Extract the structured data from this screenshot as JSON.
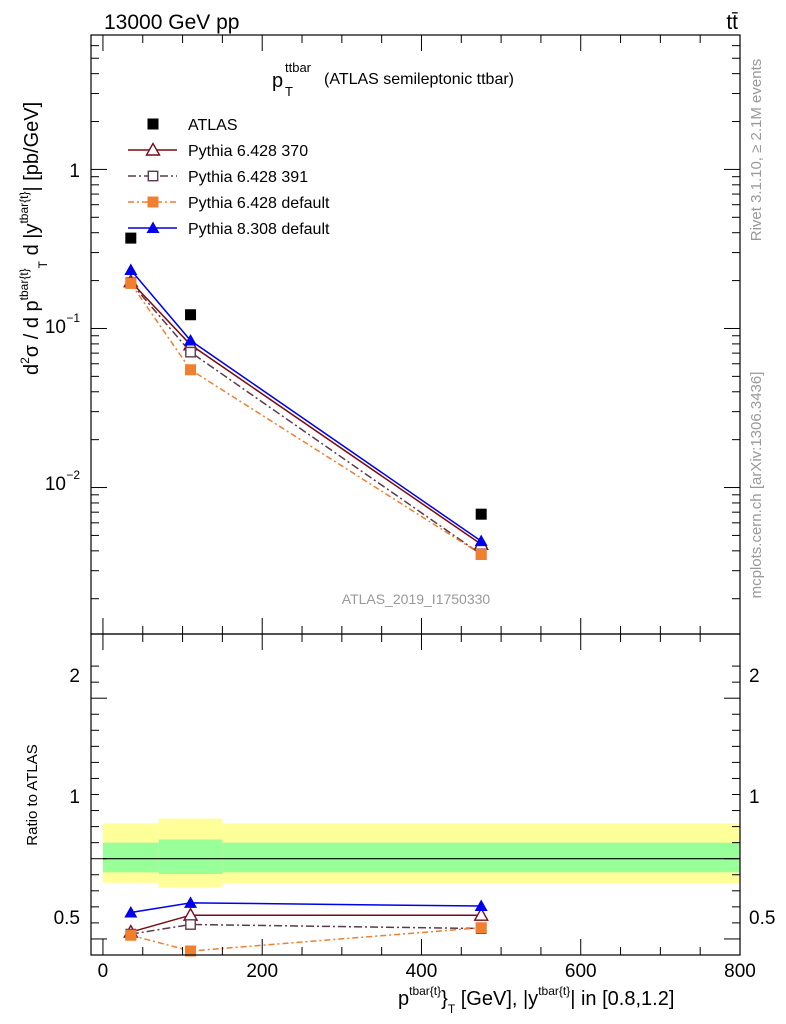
{
  "header": {
    "left": "13000 GeV pp",
    "right": "tt̄"
  },
  "side": {
    "rivet": "Rivet 3.1.10, ≥ 2.1M events",
    "mcplots": "mcplots.cern.ch [arXiv:1306.3436]"
  },
  "top_title": {
    "main": "p",
    "sup": "ttbar",
    "sub": "T",
    "rest": "(ATLAS semileptonic ttbar)"
  },
  "watermark": "ATLAS_2019_I1750330",
  "y_axis_top": "d²σ / d p^tbar{t}_T d |y^tbar{t}| [pb/GeV]",
  "y_axis_bottom": "Ratio to ATLAS",
  "x_axis": "p^tbar{t}_T [GeV], |y^tbar{t}| in [0.8,1.2]",
  "colors": {
    "atlas": "#000000",
    "p6_370": "#7a0a14",
    "p6_391": "#5b3a4a",
    "p6_def": "#f07f30",
    "p8_def": "#0000ee",
    "band_outer": "#ffff99",
    "band_inner": "#99ff99"
  },
  "chart_data": [
    {
      "type": "line",
      "panel": "main",
      "xlim": [
        -15,
        800
      ],
      "ylim": [
        0.0012,
        7
      ],
      "yscale": "log",
      "legend_placement": "top-left",
      "y_tick_labels": [
        "1",
        "10^{-1}",
        "10^{-2}"
      ],
      "series": [
        {
          "name": "ATLAS",
          "marker": "square-filled",
          "x": [
            35,
            110,
            475
          ],
          "y": [
            0.37,
            0.122,
            0.0068
          ]
        },
        {
          "name": "Pythia 6.428 370",
          "marker": "triangle-open",
          "x": [
            35,
            110,
            475
          ],
          "y": [
            0.197,
            0.079,
            0.0044
          ]
        },
        {
          "name": "Pythia 6.428 391",
          "marker": "square-open",
          "x": [
            35,
            110,
            475
          ],
          "y": [
            0.194,
            0.071,
            0.0038
          ]
        },
        {
          "name": "Pythia 6.428 default",
          "marker": "square-filled",
          "x": [
            35,
            110,
            475
          ],
          "y": [
            0.192,
            0.055,
            0.0038
          ]
        },
        {
          "name": "Pythia 8.308 default",
          "marker": "triangle-filled",
          "x": [
            35,
            110,
            475
          ],
          "y": [
            0.233,
            0.084,
            0.0046
          ]
        }
      ]
    },
    {
      "type": "line",
      "panel": "ratio",
      "xlim": [
        -15,
        800
      ],
      "ylim": [
        0.4,
        2.4
      ],
      "x_tick_labels": [
        "0",
        "200",
        "400",
        "600",
        "800"
      ],
      "y_tick_labels": [
        "0.5",
        "1",
        "2"
      ],
      "band": {
        "x_edges": [
          0,
          70,
          150,
          800
        ],
        "outer_lo": [
          0.85,
          0.82,
          0.845
        ],
        "outer_hi": [
          1.22,
          1.25,
          1.22
        ],
        "inner_lo": [
          0.915,
          0.905,
          0.915
        ],
        "inner_hi": [
          1.1,
          1.12,
          1.1
        ]
      },
      "series": [
        {
          "name": "Pythia 6.428 370",
          "marker": "triangle-open",
          "x": [
            35,
            110,
            475
          ],
          "y": [
            0.543,
            0.648,
            0.648
          ]
        },
        {
          "name": "Pythia 6.428 391",
          "marker": "square-open",
          "x": [
            35,
            110,
            475
          ],
          "y": [
            0.53,
            0.59,
            0.565
          ]
        },
        {
          "name": "Pythia 6.428 default",
          "marker": "square-filled",
          "x": [
            35,
            110,
            475
          ],
          "y": [
            0.523,
            0.425,
            0.57
          ]
        },
        {
          "name": "Pythia 8.308 default",
          "marker": "triangle-filled",
          "x": [
            35,
            110,
            475
          ],
          "y": [
            0.665,
            0.725,
            0.705
          ]
        }
      ]
    }
  ]
}
